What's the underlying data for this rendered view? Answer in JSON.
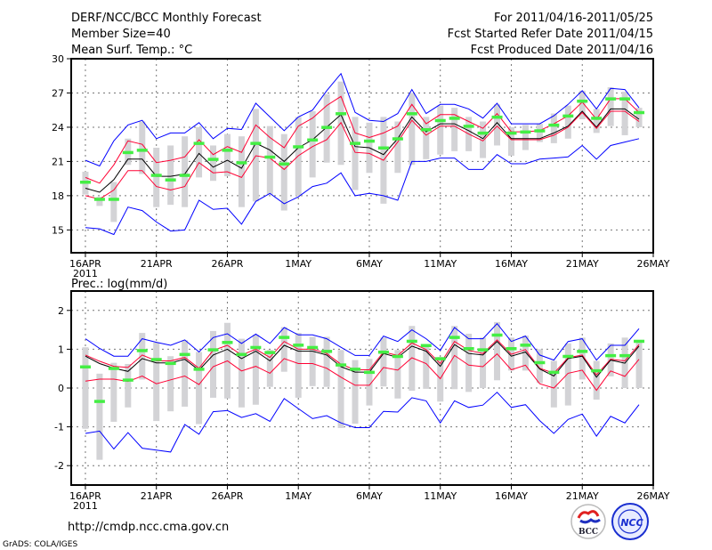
{
  "header": {
    "title": "DERF/NCC/BCC Monthly Forecast",
    "member_size": "Member Size=40",
    "variable": "Mean Surf. Temp.: °C",
    "period": "For 2011/04/16-2011/05/25",
    "started": "Fcst Started Refer Date 2011/04/15",
    "produced": "Fcst Produced Date 2011/04/16"
  },
  "footer": {
    "url": "http://cmdp.ncc.cma.gov.cn",
    "credit": "GrADS: COLA/IGES"
  },
  "logos": {
    "bcc": "BCC",
    "ncc": "NCC"
  },
  "colors": {
    "envelope": "#0000ff",
    "spread": "#ff0033",
    "mean": "#000000",
    "obs": "#44ee44",
    "range": "#d3d3d6"
  },
  "chart_data": [
    {
      "type": "line",
      "title": "Mean Surf. Temp.: °C",
      "ylabel": "°C",
      "ylim": [
        13,
        30
      ],
      "yticks": [
        15,
        18,
        21,
        24,
        27,
        30
      ],
      "xlim": [
        -1,
        40
      ],
      "xticks": [
        0,
        5,
        10,
        15,
        20,
        25,
        30,
        35,
        40
      ],
      "xticklabels": [
        "16APR",
        "21APR",
        "26APR",
        "1MAY",
        "6MAY",
        "11MAY",
        "16MAY",
        "21MAY",
        "26MAY"
      ],
      "xsublabel": "2011",
      "grid": true,
      "days": 40,
      "series": [
        {
          "name": "upper-envelope",
          "color": "#0000ff",
          "values": [
            21.1,
            20.6,
            22.8,
            24.2,
            24.6,
            23.0,
            23.5,
            23.5,
            24.4,
            23.0,
            23.9,
            23.8,
            26.1,
            24.9,
            23.7,
            24.9,
            25.5,
            27.2,
            28.7,
            25.3,
            24.6,
            24.5,
            25.2,
            27.3,
            25.2,
            26.0,
            26.0,
            25.6,
            24.8,
            26.1,
            24.3,
            24.3,
            24.3,
            25.0,
            26.0,
            27.2,
            25.6,
            27.4,
            27.3,
            25.7
          ]
        },
        {
          "name": "upper-spread",
          "color": "#ff0033",
          "values": [
            19.6,
            19.1,
            20.7,
            22.8,
            22.5,
            20.9,
            21.1,
            21.4,
            22.9,
            21.6,
            22.3,
            21.8,
            24.2,
            23.1,
            22.2,
            24.1,
            24.8,
            25.9,
            26.7,
            23.5,
            23.1,
            23.5,
            24.1,
            26.0,
            24.3,
            25.1,
            25.1,
            24.5,
            23.9,
            25.2,
            23.6,
            23.6,
            23.7,
            24.3,
            25.0,
            26.2,
            24.7,
            26.5,
            26.5,
            25.3
          ]
        },
        {
          "name": "ensemble-mean",
          "color": "#000000",
          "values": [
            18.65,
            18.3,
            19.4,
            21.2,
            21.2,
            19.7,
            19.7,
            19.9,
            21.7,
            20.5,
            21.1,
            20.4,
            22.6,
            22.0,
            21.0,
            22.2,
            22.9,
            24.0,
            25.1,
            22.3,
            22.2,
            21.6,
            23.0,
            24.9,
            23.6,
            24.3,
            24.3,
            23.7,
            23.0,
            24.4,
            23.0,
            23.0,
            23.0,
            23.5,
            24.1,
            25.4,
            24.0,
            25.6,
            25.6,
            24.7
          ]
        },
        {
          "name": "lower-spread",
          "color": "#ff0033",
          "values": [
            18.0,
            17.7,
            18.5,
            20.2,
            20.2,
            18.8,
            18.5,
            18.8,
            20.9,
            20.0,
            20.1,
            19.6,
            21.5,
            21.3,
            20.3,
            21.5,
            22.3,
            22.9,
            24.4,
            21.8,
            21.7,
            21.1,
            22.7,
            24.6,
            23.3,
            24.1,
            24.1,
            23.4,
            22.8,
            24.1,
            22.9,
            22.9,
            22.9,
            23.3,
            24.0,
            25.3,
            23.9,
            25.4,
            25.4,
            24.5
          ]
        },
        {
          "name": "lower-envelope",
          "color": "#0000ff",
          "values": [
            15.2,
            15.1,
            14.6,
            17.0,
            16.7,
            15.7,
            14.9,
            15.0,
            17.6,
            16.8,
            16.9,
            15.5,
            17.5,
            18.2,
            17.3,
            17.9,
            18.8,
            19.1,
            20.0,
            18.0,
            18.2,
            18.0,
            17.6,
            21.0,
            21.0,
            21.3,
            21.3,
            20.3,
            20.3,
            21.6,
            20.8,
            20.8,
            21.2,
            21.3,
            21.4,
            22.4,
            21.2,
            22.4,
            22.7,
            23.0
          ]
        }
      ],
      "ranges": {
        "min": [
          18.1,
          17.1,
          15.7,
          20.7,
          19.9,
          17.0,
          17.2,
          17.0,
          19.6,
          19.3,
          19.7,
          17.0,
          17.5,
          18.1,
          16.7,
          18.0,
          19.6,
          20.9,
          20.7,
          18.5,
          20.0,
          17.3,
          20.0,
          20.7,
          21.2,
          21.6,
          21.9,
          21.9,
          21.3,
          22.4,
          21.5,
          22.0,
          22.7,
          22.6,
          23.0,
          24.7,
          23.5,
          24.1,
          23.3,
          24.0
        ],
        "max": [
          20.1,
          17.9,
          19.2,
          23.0,
          24.5,
          22.2,
          22.4,
          23.2,
          24.0,
          22.4,
          23.4,
          23.2,
          25.6,
          24.1,
          23.4,
          24.9,
          25.4,
          26.9,
          28.0,
          24.9,
          24.4,
          24.9,
          24.5,
          27.0,
          24.9,
          25.9,
          25.7,
          24.9,
          24.5,
          26.0,
          24.0,
          24.2,
          24.3,
          25.2,
          25.9,
          27.2,
          25.6,
          27.5,
          27.1,
          25.7
        ]
      },
      "markers": [
        19.2,
        17.7,
        17.7,
        21.8,
        22.0,
        19.8,
        19.4,
        19.8,
        22.6,
        21.2,
        22.0,
        20.9,
        22.6,
        21.4,
        20.8,
        22.3,
        22.9,
        24.0,
        25.2,
        22.6,
        22.8,
        22.2,
        23.0,
        25.2,
        23.8,
        24.6,
        24.8,
        24.1,
        23.5,
        24.9,
        23.5,
        23.6,
        23.7,
        24.2,
        25.0,
        26.3,
        24.8,
        26.5,
        26.5,
        25.3
      ]
    },
    {
      "type": "line",
      "title": "Prec.: log(mm/d)",
      "ylabel": "log(mm/d)",
      "ylim": [
        -2.5,
        2.5
      ],
      "yticks": [
        -2,
        -1,
        0,
        1,
        2
      ],
      "xlim": [
        -1,
        40
      ],
      "xticks": [
        0,
        5,
        10,
        15,
        20,
        25,
        30,
        35,
        40
      ],
      "xticklabels": [
        "16APR",
        "21APR",
        "26APR",
        "1MAY",
        "6MAY",
        "11MAY",
        "16MAY",
        "21MAY",
        "26MAY"
      ],
      "xsublabel": "2011",
      "grid": true,
      "days": 40,
      "series": [
        {
          "name": "upper-envelope",
          "color": "#0000ff",
          "values": [
            1.27,
            1.02,
            0.82,
            0.82,
            1.27,
            1.18,
            1.1,
            1.24,
            0.93,
            1.3,
            1.4,
            1.15,
            1.39,
            1.15,
            1.56,
            1.37,
            1.37,
            1.27,
            1.05,
            0.84,
            0.84,
            1.34,
            1.2,
            1.5,
            1.27,
            0.97,
            1.56,
            1.27,
            1.27,
            1.66,
            1.2,
            1.34,
            0.85,
            0.72,
            1.2,
            1.27,
            0.72,
            1.1,
            1.1,
            1.53
          ]
        },
        {
          "name": "upper-spread",
          "color": "#ff0033",
          "values": [
            0.85,
            0.69,
            0.56,
            0.53,
            0.85,
            0.7,
            0.7,
            0.79,
            0.51,
            0.97,
            1.1,
            0.85,
            1.0,
            0.79,
            1.2,
            1.0,
            1.0,
            0.89,
            0.61,
            0.47,
            0.47,
            0.93,
            0.84,
            1.16,
            0.99,
            0.63,
            1.2,
            0.97,
            0.89,
            1.24,
            0.87,
            0.99,
            0.51,
            0.38,
            0.78,
            0.85,
            0.34,
            0.74,
            0.7,
            1.12
          ]
        },
        {
          "name": "ensemble-mean",
          "color": "#000000",
          "values": [
            0.82,
            0.63,
            0.51,
            0.43,
            0.76,
            0.65,
            0.65,
            0.74,
            0.46,
            0.85,
            1.0,
            0.76,
            0.95,
            0.7,
            1.1,
            0.95,
            0.95,
            0.85,
            0.55,
            0.41,
            0.41,
            0.89,
            0.79,
            1.08,
            0.95,
            0.56,
            1.12,
            0.89,
            0.85,
            1.2,
            0.82,
            0.93,
            0.49,
            0.31,
            0.76,
            0.82,
            0.28,
            0.72,
            0.64,
            1.08
          ]
        },
        {
          "name": "lower-spread",
          "color": "#ff0033",
          "values": [
            0.18,
            0.23,
            0.23,
            0.17,
            0.31,
            0.11,
            0.21,
            0.31,
            0.09,
            0.55,
            0.7,
            0.44,
            0.56,
            0.38,
            0.76,
            0.63,
            0.63,
            0.51,
            0.28,
            0.07,
            0.07,
            0.53,
            0.46,
            0.78,
            0.63,
            0.24,
            0.84,
            0.59,
            0.55,
            0.88,
            0.47,
            0.59,
            0.11,
            0.0,
            0.38,
            0.46,
            -0.06,
            0.44,
            0.3,
            0.74
          ]
        },
        {
          "name": "lower-envelope",
          "color": "#0000ff",
          "values": [
            -1.17,
            -1.11,
            -1.57,
            -1.15,
            -1.55,
            -1.6,
            -1.65,
            -0.94,
            -1.19,
            -0.61,
            -0.58,
            -0.76,
            -0.66,
            -0.86,
            -0.27,
            -0.53,
            -0.79,
            -0.71,
            -0.9,
            -1.02,
            -1.02,
            -0.6,
            -0.62,
            -0.25,
            -0.33,
            -0.9,
            -0.33,
            -0.5,
            -0.44,
            -0.11,
            -0.5,
            -0.43,
            -0.84,
            -1.17,
            -0.81,
            -0.67,
            -1.24,
            -0.73,
            -0.9,
            -0.43
          ]
        }
      ],
      "ranges": {
        "min": [
          -1.05,
          -1.85,
          -0.87,
          -0.5,
          0.22,
          -0.85,
          -0.6,
          -0.48,
          -0.93,
          -0.25,
          -0.27,
          -0.5,
          -0.43,
          0.03,
          0.42,
          -0.25,
          0.05,
          0.03,
          -1.03,
          -0.92,
          -0.45,
          0.04,
          -0.27,
          -0.07,
          -0.02,
          -0.35,
          -0.03,
          -0.1,
          0.0,
          0.2,
          0.45,
          0.45,
          0.13,
          -0.5,
          -0.45,
          0.22,
          -0.3,
          0.3,
          0.0,
          0.0
        ],
        "max": [
          1.05,
          0.37,
          0.65,
          0.62,
          1.42,
          1.17,
          0.82,
          1.23,
          0.93,
          1.47,
          1.68,
          1.27,
          1.37,
          0.98,
          1.57,
          1.42,
          1.32,
          1.32,
          0.98,
          0.72,
          0.75,
          1.3,
          0.98,
          1.6,
          1.1,
          0.8,
          1.6,
          1.4,
          1.3,
          1.7,
          1.3,
          1.35,
          1.0,
          0.7,
          1.15,
          1.3,
          0.7,
          1.15,
          1.3,
          1.2
        ]
      },
      "markers": [
        0.55,
        -0.34,
        0.51,
        0.21,
        0.97,
        0.74,
        0.64,
        0.87,
        0.49,
        0.99,
        1.18,
        0.87,
        1.05,
        0.92,
        1.31,
        1.11,
        1.05,
        0.95,
        0.6,
        0.49,
        0.41,
        0.93,
        0.82,
        1.21,
        1.1,
        0.76,
        1.31,
        1.02,
        0.99,
        1.37,
        1.02,
        1.11,
        0.66,
        0.41,
        0.82,
        0.95,
        0.45,
        0.84,
        0.84,
        1.21
      ]
    }
  ]
}
